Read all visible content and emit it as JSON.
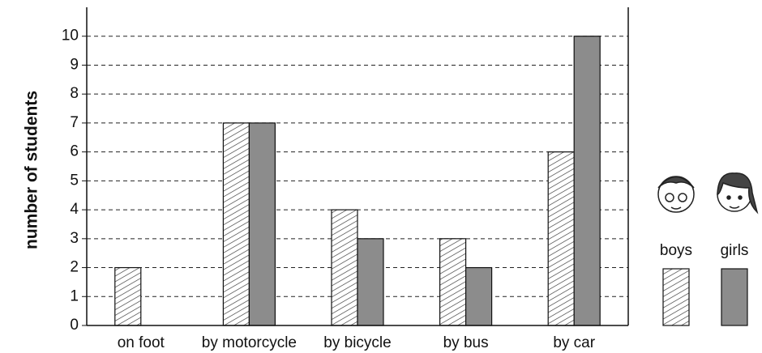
{
  "chart_data": {
    "type": "bar",
    "y_label": "number of students",
    "categories": [
      "on foot",
      "by motorcycle",
      "by bicycle",
      "by bus",
      "by car"
    ],
    "series": [
      {
        "name": "boys",
        "color": "#333333",
        "hatch": true,
        "values": [
          2,
          7,
          4,
          3,
          6
        ]
      },
      {
        "name": "girls",
        "color": "#8c8c8c",
        "hatch": false,
        "values": [
          0,
          7,
          3,
          2,
          10
        ]
      }
    ],
    "ylim": [
      0,
      11
    ],
    "yticks": [
      0,
      1,
      2,
      3,
      4,
      5,
      6,
      7,
      8,
      9,
      10
    ],
    "grid": true,
    "legend": "right"
  }
}
